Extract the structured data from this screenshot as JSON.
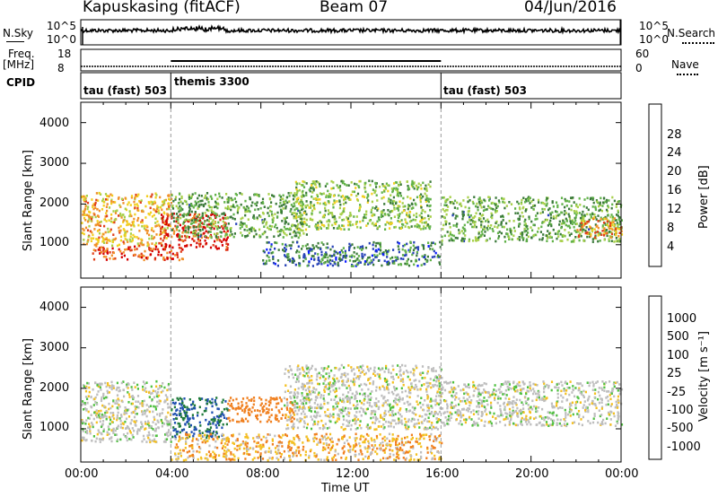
{
  "header": {
    "station": "Kapuskasing (fitACF)",
    "beam": "Beam 07",
    "date": "04/Jun/2016"
  },
  "noise_panel": {
    "left_label": "N.Sky",
    "left_ticks": [
      "10^5",
      "10^0"
    ],
    "right_ticks": [
      "10^5",
      "10^0"
    ],
    "right_label": "N.Search"
  },
  "freq_panel": {
    "left_label_1": "Freq.",
    "left_label_2": "[MHz]",
    "left_ticks": [
      "18",
      "8"
    ],
    "right_ticks": [
      "60",
      "0"
    ],
    "right_label": "Nave"
  },
  "cpid_panel": {
    "label": "CPID",
    "segments": [
      "tau (fast) 503",
      "themis 3300",
      "tau (fast) 503"
    ],
    "boundaries_ut": [
      0,
      4,
      16,
      24
    ]
  },
  "colors": {
    "power_scale": [
      "#0a1cff",
      "#2742b8",
      "#3b7a3a",
      "#62b24a",
      "#a8d04a",
      "#f2cf20",
      "#f0902a",
      "#e0401a",
      "#d50000"
    ],
    "velocity_scale": [
      "#1a2bd0",
      "#1f4fb0",
      "#1f7a3a",
      "#4fc040",
      "#bebebe",
      "#bebebe",
      "#f4c020",
      "#f08020",
      "#e04010",
      "#d00000"
    ]
  },
  "power_colorbar": {
    "ticks": [
      "4",
      "8",
      "12",
      "16",
      "20",
      "24",
      "28"
    ],
    "label": "Power [dB]"
  },
  "velocity_colorbar": {
    "ticks": [
      "1000",
      "500",
      "100",
      "25",
      "-25",
      "-100",
      "-500",
      "-1000"
    ],
    "label": "Velocity [m s⁻¹]"
  },
  "chart_data": [
    {
      "type": "heatmap",
      "title": "",
      "xlabel": "",
      "ylabel": "Slant Range [km]",
      "xlim": [
        0,
        24
      ],
      "ylim": [
        180,
        4500
      ],
      "y_ticks": [
        1000,
        2000,
        3000,
        4000
      ],
      "x_tick_labels": [
        "00:00",
        "04:00",
        "08:00",
        "12:00",
        "16:00",
        "20:00",
        "00:00"
      ],
      "quantity": "Power [dB]",
      "regions": [
        {
          "t": [
            0.0,
            4.0
          ],
          "r": [
            1000,
            2300
          ],
          "level": 20
        },
        {
          "t": [
            0.5,
            4.5
          ],
          "r": [
            650,
            1000
          ],
          "level": 26
        },
        {
          "t": [
            3.5,
            6.5
          ],
          "r": [
            900,
            1800
          ],
          "level": 27
        },
        {
          "t": [
            4.0,
            10.0
          ],
          "r": [
            1200,
            2300
          ],
          "level": 12
        },
        {
          "t": [
            9.5,
            15.5
          ],
          "r": [
            1400,
            2600
          ],
          "level": 14
        },
        {
          "t": [
            8.0,
            16.0
          ],
          "r": [
            500,
            1100
          ],
          "level": 8
        },
        {
          "t": [
            16.0,
            24.0
          ],
          "r": [
            1100,
            2200
          ],
          "level": 12
        },
        {
          "t": [
            22.0,
            24.0
          ],
          "r": [
            1200,
            1700
          ],
          "level": 22
        }
      ]
    },
    {
      "type": "heatmap",
      "title": "",
      "xlabel": "Time UT",
      "ylabel": "Slant Range [km]",
      "xlim": [
        0,
        24
      ],
      "ylim": [
        180,
        4500
      ],
      "y_ticks": [
        1000,
        2000,
        3000,
        4000
      ],
      "x_tick_labels": [
        "00:00",
        "04:00",
        "08:00",
        "12:00",
        "16:00",
        "20:00",
        "00:00"
      ],
      "quantity": "Velocity [m s⁻¹]",
      "regions": [
        {
          "t": [
            0.0,
            4.0
          ],
          "r": [
            700,
            2200
          ],
          "level": 0
        },
        {
          "t": [
            4.0,
            6.5
          ],
          "r": [
            800,
            1800
          ],
          "level": 300
        },
        {
          "t": [
            6.5,
            9.5
          ],
          "r": [
            1200,
            1800
          ],
          "level": -150
        },
        {
          "t": [
            4.0,
            16.0
          ],
          "r": [
            250,
            900
          ],
          "level": -50
        },
        {
          "t": [
            9.0,
            16.0
          ],
          "r": [
            1000,
            2600
          ],
          "level": 0
        },
        {
          "t": [
            16.0,
            24.0
          ],
          "r": [
            1100,
            2200
          ],
          "level": 0
        }
      ]
    }
  ],
  "x_axis": {
    "ticks": [
      "00:00",
      "04:00",
      "08:00",
      "12:00",
      "16:00",
      "20:00",
      "00:00"
    ],
    "label": "Time UT"
  },
  "y_axis": {
    "ticks": [
      "1000",
      "2000",
      "3000",
      "4000"
    ],
    "label": "Slant Range [km]"
  }
}
